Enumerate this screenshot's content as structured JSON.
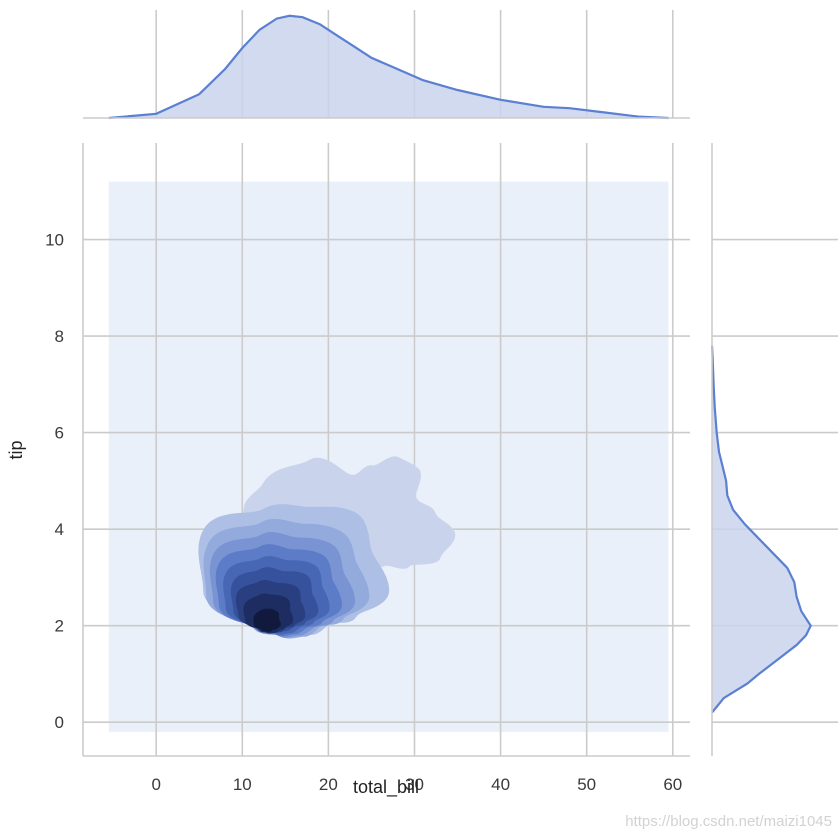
{
  "chart_data": {
    "type": "jointplot-kde",
    "xlabel": "total_bill",
    "ylabel": "tip",
    "xlim": [
      -8.5,
      62
    ],
    "ylim": [
      -0.7,
      12
    ],
    "xticks": [
      0,
      10,
      20,
      30,
      40,
      50,
      60
    ],
    "yticks": [
      0,
      2,
      4,
      6,
      8,
      10
    ],
    "grid": true,
    "kde_grid_extent": {
      "x": [
        -5.5,
        59.5
      ],
      "y": [
        -0.2,
        11.2
      ]
    },
    "kde_levels": [
      {
        "level": 1,
        "color": "#c9d4ec",
        "center": [
          22.9,
          3.88
        ]
      },
      {
        "level": 2,
        "color": "#aebfe6",
        "center": [
          18.0,
          2.72
        ]
      },
      {
        "level": 3,
        "color": "#93aadd",
        "center": [
          17.2,
          2.6
        ]
      },
      {
        "level": 4,
        "color": "#7993d3",
        "center": [
          16.6,
          2.5
        ]
      },
      {
        "level": 5,
        "color": "#5d7cc7",
        "center": [
          16.0,
          2.42
        ]
      },
      {
        "level": 6,
        "color": "#4766b4",
        "center": [
          15.5,
          2.36
        ]
      },
      {
        "level": 7,
        "color": "#37529c",
        "center": [
          15.0,
          2.3
        ]
      },
      {
        "level": 8,
        "color": "#293f80",
        "center": [
          14.3,
          2.2
        ]
      },
      {
        "level": 9,
        "color": "#1d2d61",
        "center": [
          13.7,
          2.1
        ]
      },
      {
        "level": 10,
        "color": "#111a3d",
        "center": [
          13.2,
          2.02
        ]
      }
    ],
    "marginal_x": {
      "x": [
        -5.5,
        0,
        5,
        8,
        10,
        12,
        14,
        15.5,
        17,
        19,
        21,
        23,
        25,
        28,
        31,
        35,
        40,
        45,
        48,
        52,
        56,
        59.5
      ],
      "density": [
        0.0,
        0.003,
        0.017,
        0.035,
        0.05,
        0.063,
        0.071,
        0.073,
        0.072,
        0.067,
        0.059,
        0.051,
        0.043,
        0.035,
        0.027,
        0.02,
        0.013,
        0.008,
        0.007,
        0.004,
        0.001,
        0.0
      ]
    },
    "marginal_y": {
      "y": [
        0.2,
        0.5,
        0.8,
        1.0,
        1.3,
        1.6,
        1.8,
        2.0,
        2.3,
        2.6,
        2.9,
        3.2,
        3.5,
        3.8,
        4.1,
        4.4,
        4.7,
        5.0,
        5.3,
        5.6,
        6.0,
        6.5,
        7.0,
        7.5,
        7.8
      ],
      "density": [
        0.0,
        0.05,
        0.15,
        0.2,
        0.28,
        0.36,
        0.4,
        0.42,
        0.38,
        0.36,
        0.35,
        0.32,
        0.26,
        0.2,
        0.14,
        0.09,
        0.065,
        0.06,
        0.045,
        0.03,
        0.02,
        0.012,
        0.007,
        0.003,
        0.0
      ]
    },
    "colors": {
      "line": "#5b7fd1",
      "fill": "#c9d4ec",
      "background": "#eaf0fa",
      "grid": "#cbcbcb",
      "axis_spine": "#cbcbcb"
    }
  },
  "watermark": "https://blog.csdn.net/maizi1045"
}
